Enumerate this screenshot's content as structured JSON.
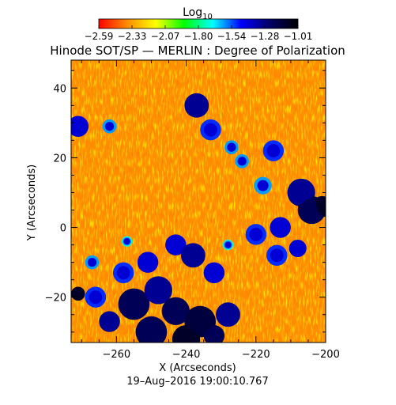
{
  "chart_data": {
    "type": "heatmap",
    "title": "Hinode SOT/SP — MERLIN : Degree of Polarization",
    "colorbar": {
      "label_base": "Log",
      "label_sub": "10",
      "tick_labels": [
        "−2.59",
        "−2.33",
        "−2.07",
        "−1.80",
        "−1.54",
        "−1.28",
        "−1.01"
      ],
      "range": [
        -2.59,
        -1.01
      ],
      "colormap": [
        "#ff0000",
        "#ff8c00",
        "#ffff00",
        "#00ff00",
        "#00ffff",
        "#0000ff",
        "#000066",
        "#000000"
      ]
    },
    "xlabel": "X (Arcseconds)",
    "ylabel": "Y (Arcseconds)",
    "xlim": [
      -273,
      -200
    ],
    "ylim": [
      -33,
      48
    ],
    "x_ticks": [
      -260,
      -240,
      -220,
      -200
    ],
    "x_tick_labels": [
      "−260",
      "−240",
      "−220",
      "−200"
    ],
    "y_ticks": [
      40,
      20,
      0,
      -20
    ],
    "y_tick_labels": [
      "40",
      "20",
      "0",
      "−20"
    ],
    "timestamp": "19–Aug–2016 19:00:10.767",
    "regions": [
      {
        "x": -237,
        "y": 35,
        "r": 3.5,
        "value": -1.3
      },
      {
        "x": -233,
        "y": 28,
        "r": 3,
        "value": -1.5
      },
      {
        "x": -227,
        "y": 23,
        "r": 2,
        "value": -1.6
      },
      {
        "x": -224,
        "y": 19,
        "r": 2,
        "value": -1.6
      },
      {
        "x": -271,
        "y": 29,
        "r": 3,
        "value": -1.4
      },
      {
        "x": -262,
        "y": 29,
        "r": 2,
        "value": -1.6
      },
      {
        "x": -215,
        "y": 22,
        "r": 3,
        "value": -1.5
      },
      {
        "x": -218,
        "y": 12,
        "r": 2.5,
        "value": -1.6
      },
      {
        "x": -207,
        "y": 10,
        "r": 4,
        "value": -1.3
      },
      {
        "x": -204,
        "y": 5,
        "r": 4,
        "value": -1.2
      },
      {
        "x": -201,
        "y": 6,
        "r": 3,
        "value": -1.1
      },
      {
        "x": -213,
        "y": 0,
        "r": 3,
        "value": -1.4
      },
      {
        "x": -220,
        "y": -2,
        "r": 3,
        "value": -1.5
      },
      {
        "x": -214,
        "y": -8,
        "r": 3,
        "value": -1.5
      },
      {
        "x": -208,
        "y": -6,
        "r": 2.5,
        "value": -1.4
      },
      {
        "x": -243,
        "y": -5,
        "r": 3,
        "value": -1.4
      },
      {
        "x": -238,
        "y": -8,
        "r": 3.5,
        "value": -1.3
      },
      {
        "x": -251,
        "y": -10,
        "r": 3,
        "value": -1.4
      },
      {
        "x": -258,
        "y": -13,
        "r": 3,
        "value": -1.5
      },
      {
        "x": -232,
        "y": -13,
        "r": 3,
        "value": -1.4
      },
      {
        "x": -266,
        "y": -20,
        "r": 3,
        "value": -1.5
      },
      {
        "x": -255,
        "y": -22,
        "r": 4.5,
        "value": -1.2
      },
      {
        "x": -248,
        "y": -18,
        "r": 4,
        "value": -1.3
      },
      {
        "x": -243,
        "y": -24,
        "r": 4,
        "value": -1.2
      },
      {
        "x": -236,
        "y": -27,
        "r": 4.5,
        "value": -1.15
      },
      {
        "x": -228,
        "y": -25,
        "r": 3.5,
        "value": -1.3
      },
      {
        "x": -262,
        "y": -27,
        "r": 3,
        "value": -1.3
      },
      {
        "x": -250,
        "y": -30,
        "r": 4.5,
        "value": -1.2
      },
      {
        "x": -240,
        "y": -32,
        "r": 4,
        "value": -1.1
      },
      {
        "x": -232,
        "y": -31,
        "r": 3,
        "value": -1.2
      },
      {
        "x": -271,
        "y": -19,
        "r": 2,
        "value": -1.1
      },
      {
        "x": -267,
        "y": -10,
        "r": 2,
        "value": -1.6
      },
      {
        "x": -257,
        "y": -4,
        "r": 1.5,
        "value": -1.7
      },
      {
        "x": -228,
        "y": -5,
        "r": 1.5,
        "value": -1.7
      }
    ]
  }
}
